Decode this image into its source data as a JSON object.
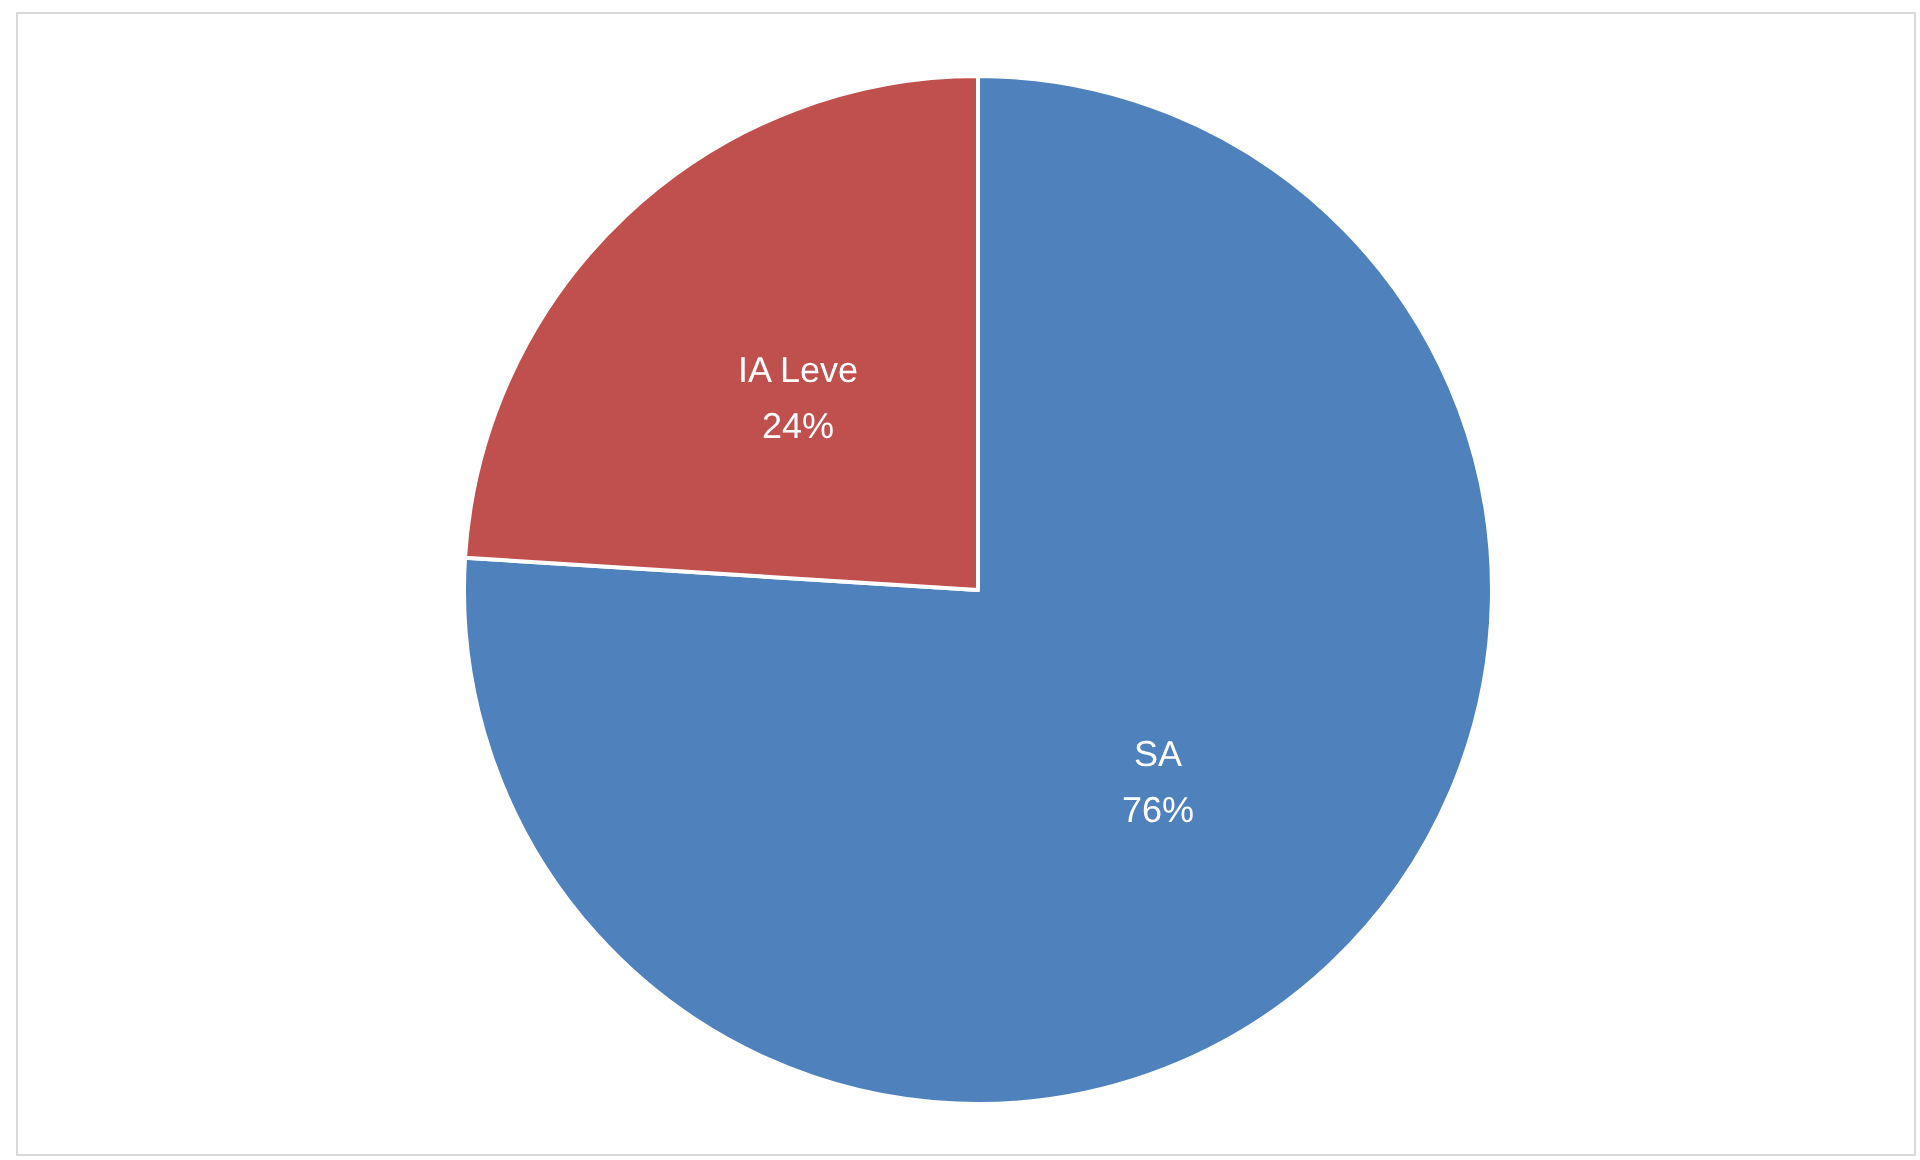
{
  "chart_data": {
    "type": "pie",
    "categories": [
      "SA",
      "IA Leve"
    ],
    "values": [
      76,
      24
    ],
    "value_labels": [
      "76%",
      "24%"
    ],
    "colors": [
      "#4f81bd",
      "#c0504d"
    ],
    "legend": false
  }
}
